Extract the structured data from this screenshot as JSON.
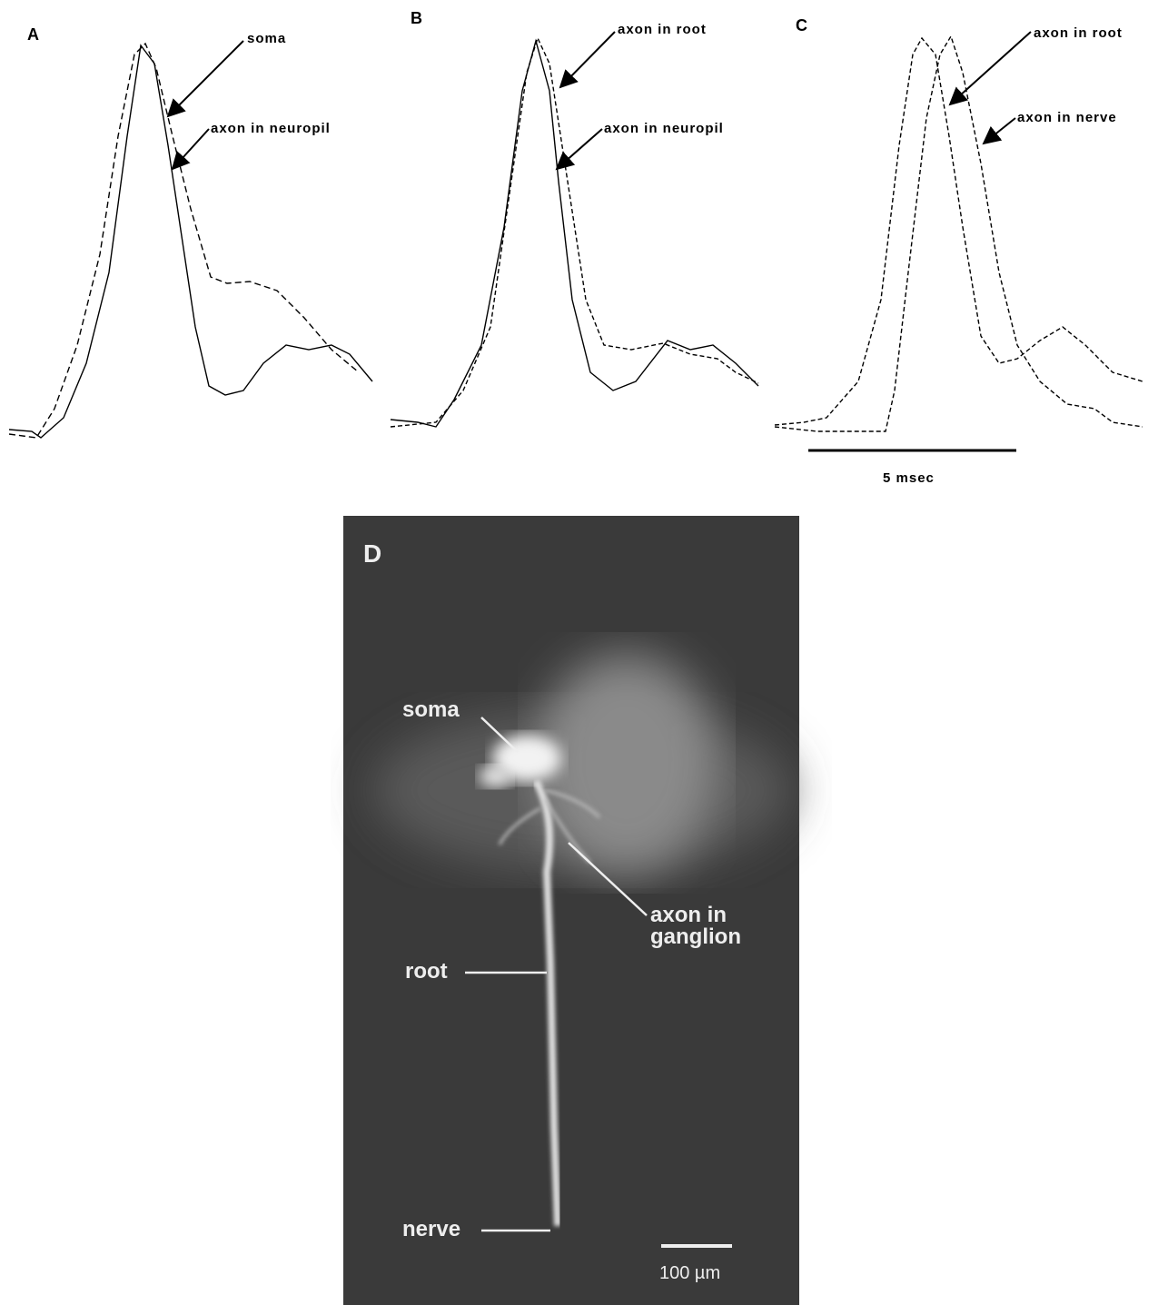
{
  "panels": [
    {
      "label": "A",
      "annotations": [
        "soma",
        "axon in neuropil"
      ]
    },
    {
      "label": "B",
      "annotations": [
        "axon in root",
        "axon in neuropil"
      ]
    },
    {
      "label": "C",
      "annotations": [
        "axon in root",
        "axon in nerve"
      ],
      "scale_bar": "5 msec"
    },
    {
      "label": "D",
      "annotations": [
        "soma",
        "axon in ganglion",
        "root",
        "nerve"
      ],
      "scale_bar": "100 µm"
    }
  ]
}
